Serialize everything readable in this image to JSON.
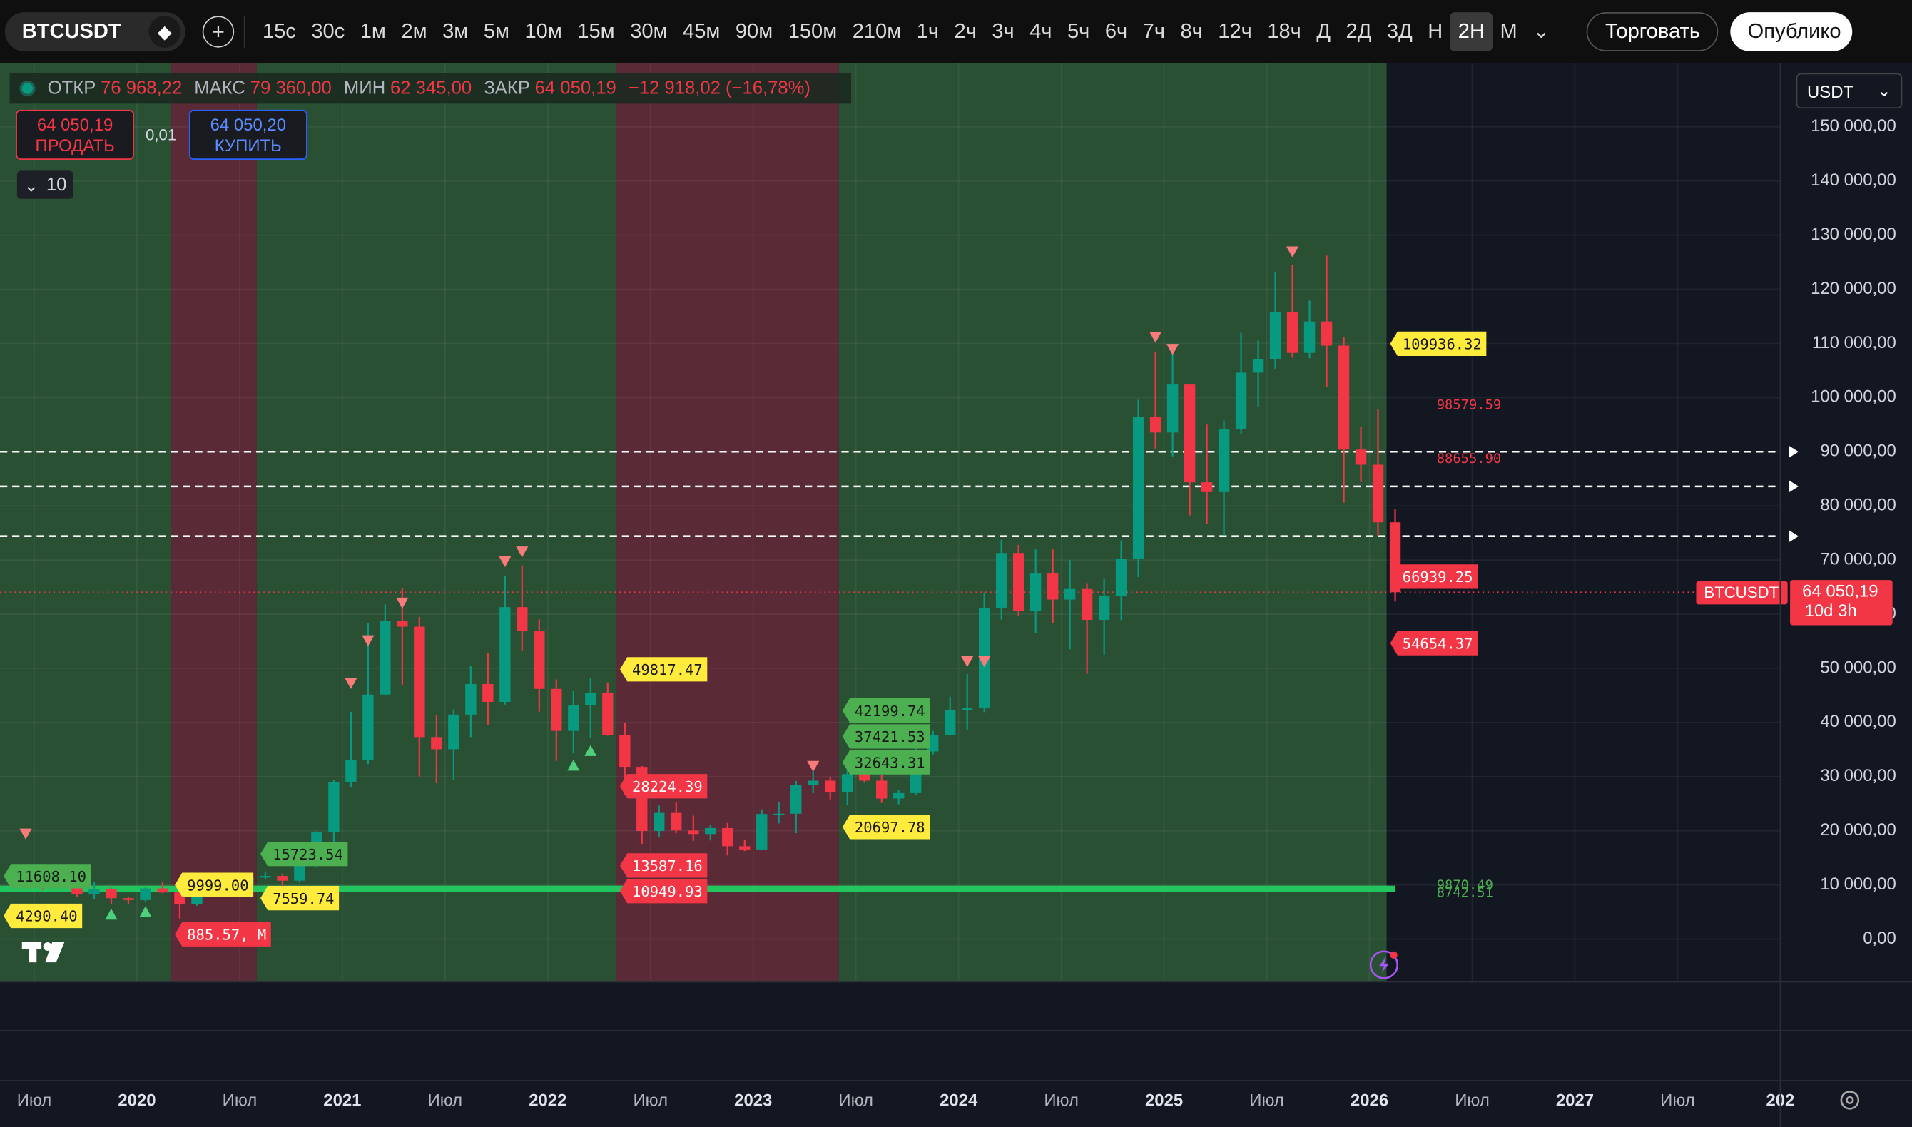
{
  "toolbar": {
    "symbol": "BTCUSDT",
    "intervals": [
      "15с",
      "30с",
      "1м",
      "2м",
      "3м",
      "5м",
      "10м",
      "15м",
      "30м",
      "45м",
      "90м",
      "150м",
      "210м",
      "1ч",
      "2ч",
      "3ч",
      "4ч",
      "5ч",
      "6ч",
      "7ч",
      "8ч",
      "12ч",
      "18ч",
      "Д",
      "2Д",
      "3Д",
      "Н",
      "2Н",
      "М"
    ],
    "active_interval": "2Н",
    "trade": "Торговать",
    "publish": "Опублико"
  },
  "legend": {
    "items": [
      {
        "label": "ОТКР",
        "value": "76 968,22"
      },
      {
        "label": "МАКС",
        "value": "79 360,00"
      },
      {
        "label": "МИН",
        "value": "62 345,00"
      },
      {
        "label": "ЗАКР",
        "value": "64 050,19"
      }
    ],
    "change": "−12 918,02 (−16,78%)"
  },
  "order_panel": {
    "sell_price": "64 050,19",
    "sell": "ПРОДАТЬ",
    "quantity": "0,01",
    "buy_price": "64 050,20",
    "buy": "КУПИТЬ"
  },
  "indicators_count": "10",
  "currency": "USDT",
  "price_tag": {
    "symbol": "BTCUSDT",
    "price": "64 050,19",
    "countdown": "10d 3h"
  },
  "chart_data": {
    "type": "candlestick",
    "up_color": "#089981",
    "down_color": "#f23645",
    "grid": true,
    "x": [
      "2019-07",
      "2019-08",
      "2019-09",
      "2019-10",
      "2019-11",
      "2019-12",
      "2020-01",
      "2020-02",
      "2020-03",
      "2020-04",
      "2020-05",
      "2020-06",
      "2020-07",
      "2020-08",
      "2020-09",
      "2020-10",
      "2020-11",
      "2020-12",
      "2021-01",
      "2021-02",
      "2021-03",
      "2021-04",
      "2021-05",
      "2021-06",
      "2021-07",
      "2021-08",
      "2021-09",
      "2021-10",
      "2021-11",
      "2021-12",
      "2022-01",
      "2022-02",
      "2022-03",
      "2022-04",
      "2022-05",
      "2022-06",
      "2022-07",
      "2022-08",
      "2022-09",
      "2022-10",
      "2022-11",
      "2022-12",
      "2023-01",
      "2023-02",
      "2023-03",
      "2023-04",
      "2023-05",
      "2023-06",
      "2023-07",
      "2023-08",
      "2023-09",
      "2023-10",
      "2023-11",
      "2023-12",
      "2024-01",
      "2024-02",
      "2024-03",
      "2024-04",
      "2024-05",
      "2024-06",
      "2024-07",
      "2024-08",
      "2024-09",
      "2024-10",
      "2024-11",
      "2024-12",
      "2025-01",
      "2025-02",
      "2025-03",
      "2025-04",
      "2025-05",
      "2025-06",
      "2025-07",
      "2025-08",
      "2025-09",
      "2025-10",
      "2025-11",
      "2025-12",
      "2026-01",
      "2026-02"
    ],
    "open": [
      10800,
      10100,
      9600,
      8300,
      9200,
      7550,
      7200,
      9350,
      8600,
      6400,
      8650,
      9450,
      9150,
      11350,
      11650,
      10780,
      13800,
      19700,
      28950,
      33100,
      45150,
      58800,
      57700,
      37300,
      35050,
      41450,
      47100,
      43800,
      61300,
      56950,
      46200,
      38450,
      43150,
      45500,
      37650,
      31800,
      19950,
      23300,
      20050,
      19400,
      20500,
      17150,
      16550,
      23100,
      23150,
      28450,
      29250,
      27200,
      30450,
      29250,
      25950,
      26950,
      34650,
      37700,
      42300,
      42600,
      61200,
      71300,
      60650,
      67500,
      62700,
      64650,
      58950,
      63350,
      70200,
      96400,
      93550,
      102400,
      84350,
      82550,
      94200,
      104600,
      107150,
      115750,
      108250,
      114050,
      109600,
      90400,
      87600,
      76968.22
    ],
    "high": [
      13100,
      12300,
      10900,
      10500,
      9500,
      7700,
      9600,
      10500,
      9200,
      9500,
      10100,
      10400,
      11450,
      12500,
      12100,
      14100,
      19900,
      29300,
      41950,
      58350,
      61800,
      64850,
      59500,
      41300,
      42400,
      50500,
      52900,
      67000,
      69000,
      59050,
      47950,
      45800,
      48200,
      47400,
      40000,
      31950,
      24650,
      25200,
      22800,
      21100,
      21450,
      18400,
      23950,
      25250,
      29200,
      31000,
      29850,
      31450,
      31800,
      30250,
      27500,
      35200,
      38450,
      44750,
      48950,
      64000,
      73750,
      72800,
      71950,
      71950,
      70000,
      65600,
      66500,
      73600,
      99600,
      108350,
      109350,
      102500,
      95000,
      95750,
      111950,
      110550,
      123200,
      124450,
      117900,
      126200,
      111200,
      94600,
      97900,
      79360
    ],
    "low": [
      9100,
      9400,
      7800,
      7300,
      6500,
      6400,
      6900,
      8450,
      3800,
      6150,
      8100,
      8900,
      8900,
      11100,
      9800,
      10400,
      13200,
      17600,
      28100,
      32300,
      44950,
      47000,
      30000,
      28800,
      29300,
      37300,
      39600,
      43300,
      53250,
      42000,
      32900,
      34300,
      37150,
      37550,
      26700,
      17600,
      18800,
      19550,
      18150,
      18200,
      15450,
      16250,
      16500,
      21350,
      19550,
      26950,
      25800,
      24800,
      28850,
      25150,
      24900,
      26550,
      34100,
      37600,
      38550,
      41900,
      59000,
      59600,
      56550,
      58400,
      53500,
      49000,
      52550,
      58900,
      66850,
      90500,
      89150,
      78250,
      76600,
      74500,
      93350,
      98200,
      105300,
      107350,
      107250,
      102000,
      80600,
      84400,
      74500,
      62345
    ],
    "close": [
      10100,
      9600,
      8300,
      9200,
      7550,
      7200,
      9350,
      8600,
      6400,
      8650,
      9450,
      9150,
      11350,
      11650,
      10780,
      13800,
      19700,
      28950,
      33100,
      45150,
      58800,
      57700,
      37300,
      35050,
      41450,
      47100,
      43800,
      61300,
      56950,
      46200,
      38450,
      43150,
      45500,
      37650,
      31800,
      19950,
      23300,
      20050,
      19400,
      20500,
      17150,
      16550,
      23100,
      23150,
      28450,
      29250,
      27200,
      30450,
      29250,
      25950,
      26950,
      34650,
      37700,
      42300,
      42600,
      61200,
      71300,
      60650,
      67500,
      62700,
      64650,
      58950,
      63350,
      70200,
      96400,
      93550,
      102400,
      84350,
      82550,
      94200,
      104600,
      107150,
      115750,
      108250,
      114050,
      109600,
      90400,
      87600,
      76968.22,
      64050.19
    ],
    "xlim": [
      "2019-05",
      "2028-01"
    ],
    "xticks": [
      {
        "value": "2019-07",
        "label": "Июл"
      },
      {
        "value": "2020-01",
        "label": "2020"
      },
      {
        "value": "2020-07",
        "label": "Июл"
      },
      {
        "value": "2021-01",
        "label": "2021"
      },
      {
        "value": "2021-07",
        "label": "Июл"
      },
      {
        "value": "2022-01",
        "label": "2022"
      },
      {
        "value": "2022-07",
        "label": "Июл"
      },
      {
        "value": "2023-01",
        "label": "2023"
      },
      {
        "value": "2023-07",
        "label": "Июл"
      },
      {
        "value": "2024-01",
        "label": "2024"
      },
      {
        "value": "2024-07",
        "label": "Июл"
      },
      {
        "value": "2025-01",
        "label": "2025"
      },
      {
        "value": "2025-07",
        "label": "Июл"
      },
      {
        "value": "2026-01",
        "label": "2026"
      },
      {
        "value": "2026-07",
        "label": "Июл"
      },
      {
        "value": "2027-01",
        "label": "2027"
      },
      {
        "value": "2027-07",
        "label": "Июл"
      },
      {
        "value": "2028-01",
        "label": "202"
      }
    ],
    "ylim": [
      -7900,
      161700
    ],
    "yticks": [
      {
        "value": 0,
        "label": "0,00"
      },
      {
        "value": 10000,
        "label": "10 000,00"
      },
      {
        "value": 20000,
        "label": "20 000,00"
      },
      {
        "value": 30000,
        "label": "30 000,00"
      },
      {
        "value": 40000,
        "label": "40 000,00"
      },
      {
        "value": 50000,
        "label": "50 000,00"
      },
      {
        "value": 60000,
        "label": "60 000,00"
      },
      {
        "value": 70000,
        "label": "70 000,00"
      },
      {
        "value": 80000,
        "label": "80 000,00"
      },
      {
        "value": 90000,
        "label": "90 000,00"
      },
      {
        "value": 100000,
        "label": "100 000,00"
      },
      {
        "value": 110000,
        "label": "110 000,00"
      },
      {
        "value": 120000,
        "label": "120 000,00"
      },
      {
        "value": 130000,
        "label": "130 000,00"
      },
      {
        "value": 140000,
        "label": "140 000,00"
      },
      {
        "value": 150000,
        "label": "150 000,00"
      }
    ],
    "regions": [
      {
        "from": "2019-05",
        "to": "2020-03",
        "color": "#2a5034"
      },
      {
        "from": "2020-03",
        "to": "2020-08",
        "color": "#5a2a36"
      },
      {
        "from": "2020-08",
        "to": "2022-05",
        "color": "#2a5034"
      },
      {
        "from": "2022-05",
        "to": "2023-06",
        "color": "#5a2a36"
      },
      {
        "from": "2023-06",
        "to": "2026-02",
        "color": "#2a5034"
      }
    ],
    "levels": [
      {
        "value": 90000,
        "color": "#ffffff",
        "style": "dashed"
      },
      {
        "value": 83600,
        "color": "#ffffff",
        "style": "dashed"
      },
      {
        "value": 74400,
        "color": "#ffffff",
        "style": "dashed"
      },
      {
        "value": 9300,
        "color": "#22c55e",
        "style": "solid",
        "to": "2026-02"
      }
    ],
    "annotations": [
      {
        "label": "109936.32",
        "value": 109936.32,
        "x": "2026-02",
        "style": "box",
        "color": "#ffeb3b"
      },
      {
        "label": "98579.59",
        "value": 98579.59,
        "x": "2026-04",
        "style": "text",
        "color": "#f23645"
      },
      {
        "label": "88655.90",
        "value": 88655.9,
        "x": "2026-04",
        "style": "text",
        "color": "#f23645"
      },
      {
        "label": "66939.25",
        "value": 66939.25,
        "x": "2026-02",
        "style": "box",
        "color": "#f23645"
      },
      {
        "label": "54654.37",
        "value": 54654.37,
        "x": "2026-02",
        "style": "box",
        "color": "#f23645"
      },
      {
        "label": "49817.47",
        "value": 49817.47,
        "x": "2022-05",
        "style": "box",
        "color": "#ffeb3b"
      },
      {
        "label": "28224.39",
        "value": 28224.39,
        "x": "2022-05",
        "style": "box",
        "color": "#f23645"
      },
      {
        "label": "13587.16",
        "value": 13587.16,
        "x": "2022-05",
        "style": "box",
        "color": "#f23645"
      },
      {
        "label": "10949.93",
        "value": 10949.93,
        "x": "2022-05",
        "style": "box",
        "color": "#f23645"
      },
      {
        "label": "42199.74",
        "value": 42199.74,
        "x": "2023-06",
        "style": "box",
        "color": "#4caf50"
      },
      {
        "label": "37421.53",
        "value": 37421.53,
        "x": "2023-06",
        "style": "box",
        "color": "#4caf50"
      },
      {
        "label": "32643.31",
        "value": 32643.31,
        "x": "2023-06",
        "style": "box",
        "color": "#4caf50"
      },
      {
        "label": "20697.78",
        "value": 20697.78,
        "x": "2023-06",
        "style": "box",
        "color": "#ffeb3b"
      },
      {
        "label": "15723.54",
        "value": 15723.54,
        "x": "2020-08",
        "style": "box",
        "color": "#4caf50"
      },
      {
        "label": "7559.74",
        "value": 7559.74,
        "x": "2020-08",
        "style": "box",
        "color": "#ffeb3b"
      },
      {
        "label": "9999.00",
        "value": 9999,
        "x": "2020-03",
        "style": "box",
        "color": "#ffeb3b"
      },
      {
        "label": "885.57, М",
        "value": 885.57,
        "x": "2020-03",
        "style": "box",
        "color": "#f23645"
      },
      {
        "label": "11608.10",
        "value": 11608.1,
        "x": "2019-05",
        "style": "box",
        "color": "#4caf50"
      },
      {
        "label": "4290.40",
        "value": 4290.4,
        "x": "2019-05",
        "style": "box",
        "color": "#ffeb3b"
      },
      {
        "label": "9870.49",
        "value": 9870.49,
        "x": "2026-04",
        "style": "text",
        "color": "#4caf50"
      },
      {
        "label": "8742.51",
        "value": 8742.51,
        "x": "2026-04",
        "style": "text",
        "color": "#4caf50"
      }
    ],
    "signals": [
      {
        "x": "2019-06",
        "value": 19500,
        "direction": "down"
      },
      {
        "x": "2021-01",
        "value": 47300,
        "direction": "down"
      },
      {
        "x": "2021-02",
        "value": 55200,
        "direction": "down"
      },
      {
        "x": "2021-04",
        "value": 62150,
        "direction": "down"
      },
      {
        "x": "2021-10",
        "value": 69800,
        "direction": "down"
      },
      {
        "x": "2021-11",
        "value": 71600,
        "direction": "down"
      },
      {
        "x": "2023-04",
        "value": 32000,
        "direction": "down"
      },
      {
        "x": "2024-01",
        "value": 51350,
        "direction": "down"
      },
      {
        "x": "2024-02",
        "value": 51350,
        "direction": "down"
      },
      {
        "x": "2024-12",
        "value": 111250,
        "direction": "down"
      },
      {
        "x": "2025-01",
        "value": 109000,
        "direction": "down"
      },
      {
        "x": "2025-08",
        "value": 127000,
        "direction": "down"
      },
      {
        "x": "2019-11",
        "value": 4500,
        "direction": "up"
      },
      {
        "x": "2020-01",
        "value": 4950,
        "direction": "up"
      },
      {
        "x": "2022-02",
        "value": 32000,
        "direction": "up"
      },
      {
        "x": "2022-03",
        "value": 34700,
        "direction": "up"
      }
    ]
  }
}
